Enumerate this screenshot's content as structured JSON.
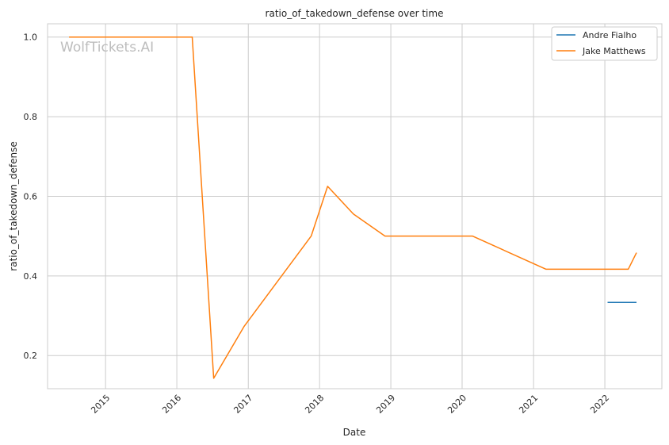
{
  "chart_data": {
    "type": "line",
    "title": "ratio_of_takedown_defense over time",
    "xlabel": "Date",
    "ylabel": "ratio_of_takedown_defense",
    "watermark": "WolfTickets.AI",
    "xlim": [
      "2014-03-10",
      "2022-10-20"
    ],
    "ylim": [
      0.1167,
      1.0333
    ],
    "x_ticks": [
      "2015",
      "2016",
      "2017",
      "2018",
      "2019",
      "2020",
      "2021",
      "2022"
    ],
    "y_ticks": [
      "0.2",
      "0.4",
      "0.6",
      "0.8",
      "1.0"
    ],
    "grid": true,
    "legend_position": "top-right",
    "series": [
      {
        "name": "Andre Fialho",
        "color": "#1f77b4",
        "points": [
          {
            "x": "2022-01-15",
            "y": 0.3333
          },
          {
            "x": "2022-06-12",
            "y": 0.3333
          }
        ]
      },
      {
        "name": "Jake Matthews",
        "color": "#ff7f0e",
        "points": [
          {
            "x": "2014-06-28",
            "y": 1.0
          },
          {
            "x": "2016-03-20",
            "y": 1.0
          },
          {
            "x": "2016-07-08",
            "y": 0.1429
          },
          {
            "x": "2016-12-10",
            "y": 0.2727
          },
          {
            "x": "2017-11-19",
            "y": 0.5
          },
          {
            "x": "2018-02-11",
            "y": 0.625
          },
          {
            "x": "2018-06-23",
            "y": 0.5556
          },
          {
            "x": "2018-12-02",
            "y": 0.5
          },
          {
            "x": "2020-02-23",
            "y": 0.5
          },
          {
            "x": "2021-03-06",
            "y": 0.4167
          },
          {
            "x": "2022-05-01",
            "y": 0.4167
          },
          {
            "x": "2022-06-12",
            "y": 0.4583
          }
        ]
      }
    ]
  }
}
